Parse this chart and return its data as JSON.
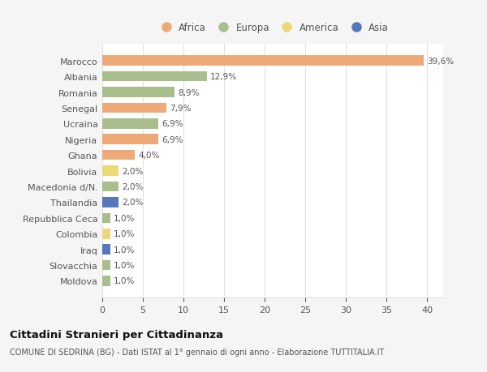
{
  "countries": [
    "Marocco",
    "Albania",
    "Romania",
    "Senegal",
    "Ucraina",
    "Nigeria",
    "Ghana",
    "Bolivia",
    "Macedonia d/N.",
    "Thailandia",
    "Repubblica Ceca",
    "Colombia",
    "Iraq",
    "Slovacchia",
    "Moldova"
  ],
  "values": [
    39.6,
    12.9,
    8.9,
    7.9,
    6.9,
    6.9,
    4.0,
    2.0,
    2.0,
    2.0,
    1.0,
    1.0,
    1.0,
    1.0,
    1.0
  ],
  "continents": [
    "Africa",
    "Europa",
    "Europa",
    "Africa",
    "Europa",
    "Africa",
    "Africa",
    "America",
    "Europa",
    "Asia",
    "Europa",
    "America",
    "Asia",
    "Europa",
    "Europa"
  ],
  "labels": [
    "39,6%",
    "12,9%",
    "8,9%",
    "7,9%",
    "6,9%",
    "6,9%",
    "4,0%",
    "2,0%",
    "2,0%",
    "2,0%",
    "1,0%",
    "1,0%",
    "1,0%",
    "1,0%",
    "1,0%"
  ],
  "colors": {
    "Africa": "#EDAA78",
    "Europa": "#A8BE8C",
    "America": "#EDD878",
    "Asia": "#5577BB"
  },
  "legend_labels": [
    "Africa",
    "Europa",
    "America",
    "Asia"
  ],
  "legend_colors": [
    "#EDAA78",
    "#A8BE8C",
    "#EDD878",
    "#5577BB"
  ],
  "title": "Cittadini Stranieri per Cittadinanza",
  "subtitle": "COMUNE DI SEDRINA (BG) - Dati ISTAT al 1° gennaio di ogni anno - Elaborazione TUTTITALIA.IT",
  "xlim": [
    0,
    42
  ],
  "xticks": [
    0,
    5,
    10,
    15,
    20,
    25,
    30,
    35,
    40
  ],
  "background_color": "#f5f5f5",
  "bar_background": "#ffffff",
  "grid_color": "#e0e0e0",
  "label_color": "#555555",
  "title_color": "#111111",
  "subtitle_color": "#555555"
}
